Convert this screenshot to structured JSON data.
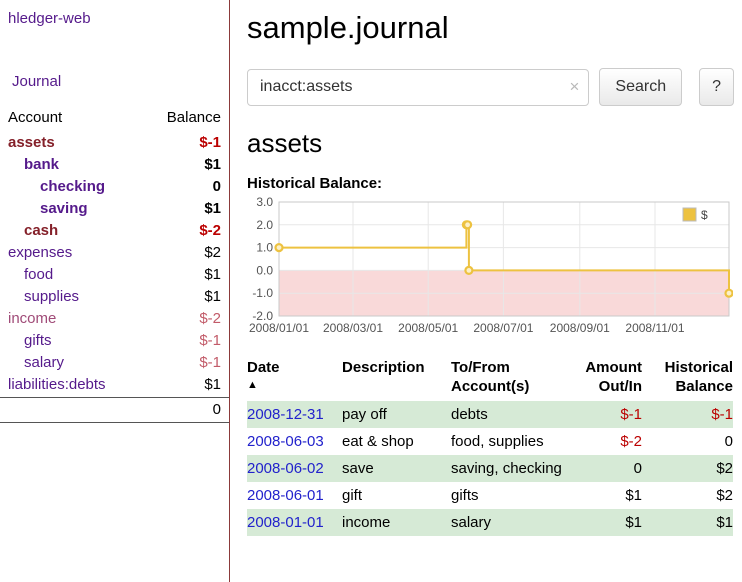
{
  "palette": {
    "purple": "#551a8b",
    "maroon": "#842029",
    "red": "#bb0000",
    "rose": "#c25b69",
    "date_blue": "#2222cc",
    "row_green": "#d6ead6",
    "series": "#EDC240",
    "negative_fill": "#f9d9d9",
    "divider": "#8b3a3a",
    "tick_text": "#545454",
    "border": "#cccccc"
  },
  "app": {
    "brand": "hledger-web",
    "nav_journal": "Journal"
  },
  "sidebar": {
    "header": {
      "account": "Account",
      "balance": "Balance"
    },
    "accounts": [
      {
        "name": "assets",
        "balance": "$-1",
        "level": 0,
        "bold": true,
        "name_color": "#842029",
        "balance_color": "#bb0000"
      },
      {
        "name": "bank",
        "balance": "$1",
        "level": 1,
        "bold": true,
        "name_color": "#551a8b",
        "balance_color": "#000000"
      },
      {
        "name": "checking",
        "balance": "0",
        "level": 2,
        "bold": true,
        "name_color": "#551a8b",
        "balance_color": "#000000"
      },
      {
        "name": "saving",
        "balance": "$1",
        "level": 2,
        "bold": true,
        "name_color": "#551a8b",
        "balance_color": "#000000"
      },
      {
        "name": "cash",
        "balance": "$-2",
        "level": 1,
        "bold": true,
        "name_color": "#842029",
        "balance_color": "#bb0000"
      },
      {
        "name": "expenses",
        "balance": "$2",
        "level": 0,
        "bold": false,
        "name_color": "#551a8b",
        "balance_color": "#000000"
      },
      {
        "name": "food",
        "balance": "$1",
        "level": 1,
        "bold": false,
        "name_color": "#551a8b",
        "balance_color": "#000000"
      },
      {
        "name": "supplies",
        "balance": "$1",
        "level": 1,
        "bold": false,
        "name_color": "#551a8b",
        "balance_color": "#000000"
      },
      {
        "name": "income",
        "balance": "$-2",
        "level": 0,
        "bold": false,
        "name_color": "#a04b78",
        "balance_color": "#c25b69"
      },
      {
        "name": "gifts",
        "balance": "$-1",
        "level": 1,
        "bold": false,
        "name_color": "#551a8b",
        "balance_color": "#c25b69"
      },
      {
        "name": "salary",
        "balance": "$-1",
        "level": 1,
        "bold": false,
        "name_color": "#551a8b",
        "balance_color": "#c25b69"
      },
      {
        "name": "liabilities:debts",
        "balance": "$1",
        "level": 0,
        "bold": false,
        "name_color": "#551a8b",
        "balance_color": "#000000"
      }
    ],
    "total": "0"
  },
  "main": {
    "title": "sample.journal",
    "search": {
      "value": "inacct:assets",
      "clear_icon": "×",
      "button_label": "Search",
      "help_label": "?"
    },
    "account_heading": "assets",
    "chart_label": "Historical Balance:"
  },
  "chart_data": {
    "type": "line",
    "title": "Historical Balance:",
    "step": true,
    "ylim": [
      -2,
      3
    ],
    "xlim_days": [
      0,
      365
    ],
    "yticks": [
      {
        "v": 3,
        "label": "3.0"
      },
      {
        "v": 2,
        "label": "2.0"
      },
      {
        "v": 1,
        "label": "1.0"
      },
      {
        "v": 0,
        "label": "0.0"
      },
      {
        "v": -1,
        "label": "-1.0"
      },
      {
        "v": -2,
        "label": "-2.0"
      }
    ],
    "xticks": [
      {
        "day": 0,
        "label": "2008/01/01"
      },
      {
        "day": 60,
        "label": "2008/03/01"
      },
      {
        "day": 121,
        "label": "2008/05/01"
      },
      {
        "day": 182,
        "label": "2008/07/01"
      },
      {
        "day": 244,
        "label": "2008/09/01"
      },
      {
        "day": 305,
        "label": "2008/11/01"
      }
    ],
    "grid": true,
    "legend_position": "top-right",
    "negative_fill": "#f9d9d9",
    "series": [
      {
        "name": "$",
        "color": "#EDC240",
        "points": [
          {
            "x": "2008-01-01",
            "day": 0,
            "y": 1
          },
          {
            "x": "2008-06-01",
            "day": 152,
            "y": 2
          },
          {
            "x": "2008-06-02",
            "day": 153,
            "y": 2
          },
          {
            "x": "2008-06-03",
            "day": 154,
            "y": 0
          },
          {
            "x": "2008-12-31",
            "day": 365,
            "y": -1
          }
        ]
      }
    ]
  },
  "table": {
    "sort_icon": "▲",
    "headers": {
      "date": "Date",
      "description": "Description",
      "account_line1": "To/From",
      "account_line2": "Account(s)",
      "amount_line1": "Amount",
      "amount_line2": "Out/In",
      "balance_line1": "Historical",
      "balance_line2": "Balance"
    },
    "rows": [
      {
        "date": "2008-12-31",
        "description": "pay off",
        "accounts": "debts",
        "amount": "$-1",
        "amount_color": "#bb0000",
        "balance": "$-1",
        "balance_color": "#bb0000"
      },
      {
        "date": "2008-06-03",
        "description": "eat & shop",
        "accounts": "food, supplies",
        "amount": "$-2",
        "amount_color": "#bb0000",
        "balance": "0",
        "balance_color": "#000000"
      },
      {
        "date": "2008-06-02",
        "description": "save",
        "accounts": "saving, checking",
        "amount": "0",
        "amount_color": "#000000",
        "balance": "$2",
        "balance_color": "#000000"
      },
      {
        "date": "2008-06-01",
        "description": "gift",
        "accounts": "gifts",
        "amount": "$1",
        "amount_color": "#000000",
        "balance": "$2",
        "balance_color": "#000000"
      },
      {
        "date": "2008-01-01",
        "description": "income",
        "accounts": "salary",
        "amount": "$1",
        "amount_color": "#000000",
        "balance": "$1",
        "balance_color": "#000000"
      }
    ]
  }
}
